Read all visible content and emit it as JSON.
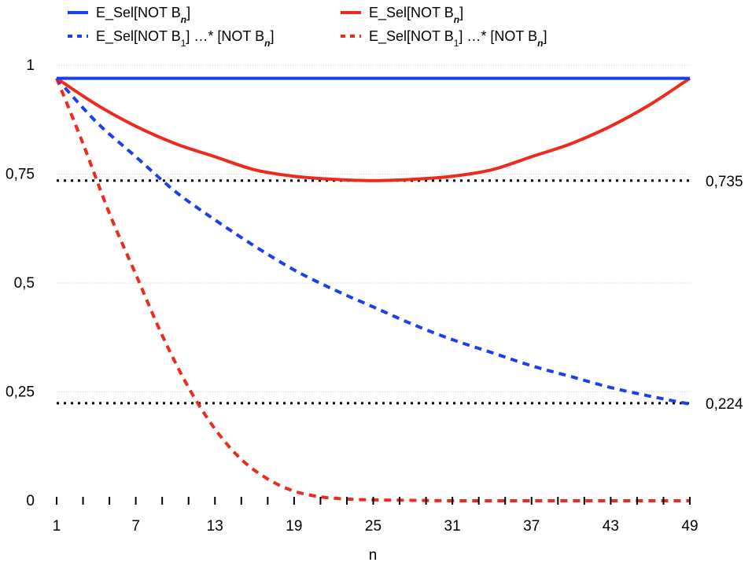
{
  "chart_data": {
    "type": "line",
    "xlabel": "n",
    "ylabel": "",
    "title": "",
    "xlim": [
      1,
      49
    ],
    "ylim": [
      0,
      1
    ],
    "grid": true,
    "legend_placement": "top",
    "x_ticks": [
      1,
      7,
      13,
      19,
      25,
      31,
      37,
      43,
      49
    ],
    "x_tick_labels": [
      "1",
      "7",
      "13",
      "19",
      "25",
      "31",
      "37",
      "43",
      "49"
    ],
    "y_ticks": [
      0,
      0.25,
      0.5,
      0.75,
      1
    ],
    "y_tick_labels": [
      "0",
      "0,25",
      "0,5",
      "0,75",
      "1"
    ],
    "reference_lines": [
      {
        "value": 0.735,
        "label": "0,735"
      },
      {
        "value": 0.224,
        "label": "0,224"
      }
    ],
    "colors": {
      "blue": "#1a3ff0",
      "red": "#ee2a1c",
      "reference": "#000000",
      "grid": "#cccccc"
    },
    "series": [
      {
        "name": "E_Sel[NOT Bₙ]",
        "legend_parts": {
          "pre": "E_Sel[NOT B",
          "sub": "n",
          "post": "]"
        },
        "color": "#1a3ff0",
        "dashed": false,
        "x": [
          1,
          7,
          13,
          19,
          25,
          31,
          37,
          43,
          49
        ],
        "y": [
          0.97,
          0.97,
          0.97,
          0.97,
          0.97,
          0.97,
          0.97,
          0.97,
          0.97
        ]
      },
      {
        "name": "E_Sel[NOT Bₙ]",
        "legend_parts": {
          "pre": "E_Sel[NOT B",
          "sub": "n",
          "post": "]"
        },
        "color": "#ee2a1c",
        "dashed": false,
        "x": [
          1,
          4,
          7,
          10,
          13,
          16,
          19,
          22,
          25,
          28,
          31,
          34,
          37,
          40,
          43,
          46,
          49
        ],
        "y": [
          0.97,
          0.91,
          0.86,
          0.82,
          0.79,
          0.76,
          0.745,
          0.738,
          0.735,
          0.738,
          0.745,
          0.76,
          0.79,
          0.82,
          0.86,
          0.91,
          0.97
        ]
      },
      {
        "name": "E_Sel[NOT B₁] …* [NOT Bₙ]",
        "legend_parts": {
          "pre": "E_Sel[NOT B",
          "sub1": "1",
          "mid": "] …* [NOT B",
          "sub": "n",
          "post": "]"
        },
        "color": "#1a3ff0",
        "dashed": true,
        "x": [
          1,
          4,
          7,
          10,
          13,
          16,
          19,
          22,
          25,
          28,
          31,
          34,
          37,
          40,
          43,
          46,
          49
        ],
        "y": [
          0.97,
          0.87,
          0.79,
          0.71,
          0.645,
          0.585,
          0.53,
          0.485,
          0.445,
          0.405,
          0.37,
          0.34,
          0.31,
          0.285,
          0.26,
          0.24,
          0.222
        ]
      },
      {
        "name": "E_Sel[NOT B₁] …* [NOT Bₙ]",
        "legend_parts": {
          "pre": "E_Sel[NOT B",
          "sub1": "1",
          "mid": "] …* [NOT B",
          "sub": "n",
          "post": "]"
        },
        "color": "#ee2a1c",
        "dashed": true,
        "x": [
          1,
          3,
          5,
          7,
          9,
          11,
          13,
          15,
          17,
          19,
          21,
          23,
          25,
          28,
          31,
          37,
          43,
          49
        ],
        "y": [
          0.97,
          0.82,
          0.66,
          0.52,
          0.38,
          0.26,
          0.165,
          0.095,
          0.05,
          0.022,
          0.009,
          0.004,
          0.002,
          0.001,
          0.0,
          0.0,
          0.0,
          0.0
        ]
      }
    ]
  }
}
